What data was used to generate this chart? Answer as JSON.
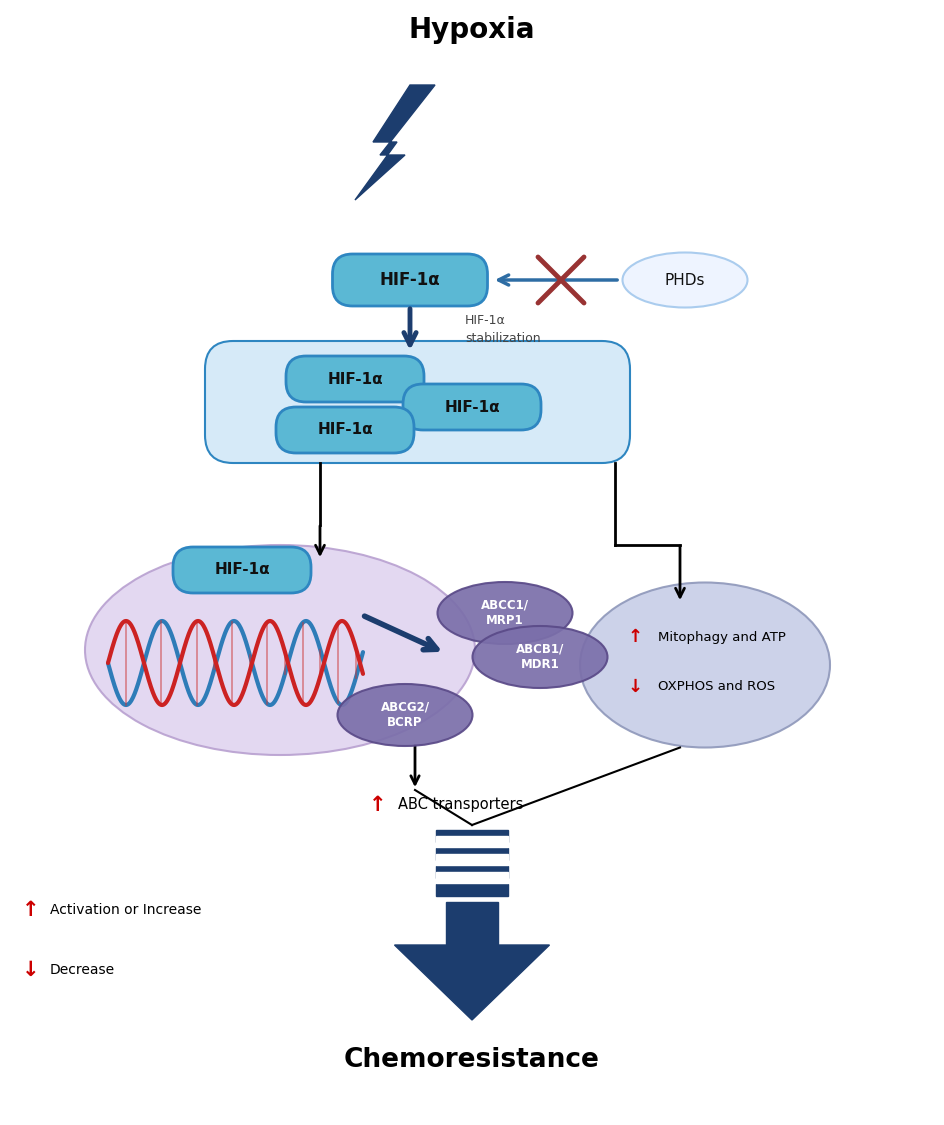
{
  "bg_color": "#ffffff",
  "dark_blue": "#1C3D6E",
  "mid_blue": "#2E6DA4",
  "light_blue_box": "#D6EAF8",
  "hif_box_color": "#5BB8D4",
  "hif_box_border": "#2E86C1",
  "phds_fill": "#EEF4FF",
  "phds_border": "#AACCEE",
  "dna_ellipse_color": "#E0D4F0",
  "dna_ellipse_border": "#B8A0D0",
  "abc_ellipse_color": "#7B6FAA",
  "abc_ellipse_border": "#5A4A88",
  "mitophagy_fill": "#C8CEE8",
  "mitophagy_border": "#9099BB",
  "arrow_blue": "#1C3D6E",
  "red_cross": "#993333",
  "red_up": "#CC0000",
  "red_down": "#CC0000",
  "title": "Hypoxia",
  "hif1a": "HIF-1α",
  "phds": "PHDs",
  "stab_label": "HIF-1α\nstabilization",
  "abcc1": "ABCC1/\nMRP1",
  "abcb1": "ABCB1/\nMDR1",
  "abcg2": "ABCG2/\nBCRP",
  "chemoresistance": "Chemoresistance",
  "legend_inc": "Activation or Increase",
  "legend_dec": "Decrease"
}
